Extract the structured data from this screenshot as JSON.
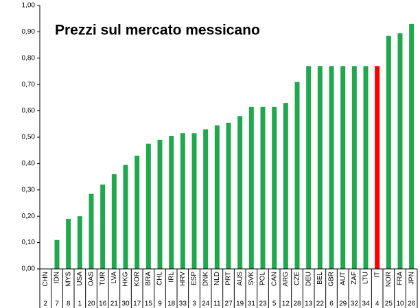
{
  "chart_data": {
    "type": "bar",
    "title": "Prezzi sul mercato messicano",
    "categories": [
      "CHN",
      "IDN",
      "MYS",
      "USA",
      "OAS",
      "TUR",
      "LVA",
      "HKG",
      "KOR",
      "BRA",
      "CHL",
      "IRL",
      "HRV",
      "ESP",
      "DNK",
      "NLD",
      "PRT",
      "AUS",
      "SVK",
      "POL",
      "CAN",
      "ARG",
      "CZE",
      "DEU",
      "BEL",
      "GBR",
      "AUT",
      "ZAF",
      "LTU",
      "IT",
      "NOR",
      "FRA",
      "JPN"
    ],
    "category_codes": [
      2,
      7,
      8,
      1,
      20,
      16,
      21,
      30,
      17,
      15,
      9,
      18,
      33,
      3,
      24,
      11,
      27,
      19,
      31,
      23,
      5,
      12,
      28,
      13,
      22,
      6,
      29,
      32,
      34,
      4,
      25,
      10,
      26
    ],
    "values": [
      0,
      0.11,
      0.19,
      0.2,
      0.285,
      0.32,
      0.36,
      0.395,
      0.43,
      0.475,
      0.49,
      0.505,
      0.515,
      0.515,
      0.53,
      0.545,
      0.555,
      0.58,
      0.615,
      0.615,
      0.615,
      0.63,
      0.71,
      0.77,
      0.77,
      0.77,
      0.77,
      0.77,
      0.77,
      0.77,
      0.885,
      0.895,
      0.93
    ],
    "colors": [
      "#21a84f",
      "#21a84f",
      "#21a84f",
      "#21a84f",
      "#21a84f",
      "#21a84f",
      "#21a84f",
      "#21a84f",
      "#21a84f",
      "#21a84f",
      "#21a84f",
      "#21a84f",
      "#21a84f",
      "#21a84f",
      "#21a84f",
      "#21a84f",
      "#21a84f",
      "#21a84f",
      "#21a84f",
      "#21a84f",
      "#21a84f",
      "#21a84f",
      "#21a84f",
      "#21a84f",
      "#21a84f",
      "#21a84f",
      "#21a84f",
      "#21a84f",
      "#21a84f",
      "#ff0000",
      "#21a84f",
      "#21a84f",
      "#21a84f"
    ],
    "ylim": [
      0,
      1
    ],
    "yticks": [
      {
        "value": 0,
        "label": "0,00"
      },
      {
        "value": 0.1,
        "label": "0,10"
      },
      {
        "value": 0.2,
        "label": "0,20"
      },
      {
        "value": 0.3,
        "label": "0,30"
      },
      {
        "value": 0.4,
        "label": "0,40"
      },
      {
        "value": 0.5,
        "label": "0,50"
      },
      {
        "value": 0.6,
        "label": "0,60"
      },
      {
        "value": 0.7,
        "label": "0,70"
      },
      {
        "value": 0.8,
        "label": "0,80"
      },
      {
        "value": 0.9,
        "label": "0,90"
      },
      {
        "value": 1,
        "label": "1,00"
      }
    ],
    "grid": false
  }
}
